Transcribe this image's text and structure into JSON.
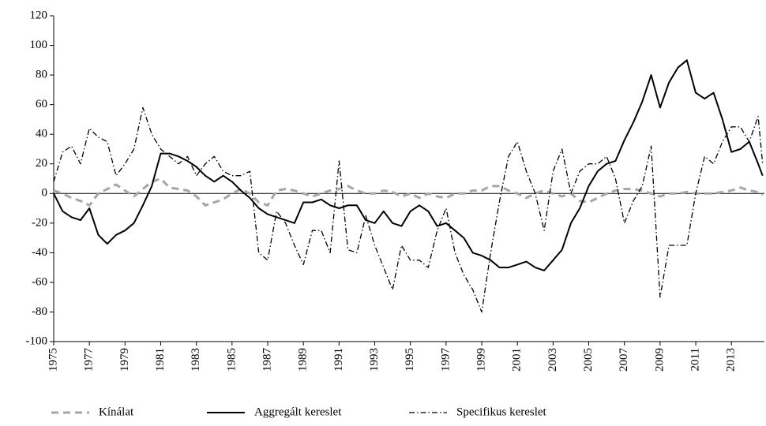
{
  "chart_data": {
    "type": "line",
    "x": [
      1975,
      1975.5,
      1976,
      1976.5,
      1977,
      1977.5,
      1978,
      1978.5,
      1979,
      1979.5,
      1980,
      1980.5,
      1981,
      1981.5,
      1982,
      1982.5,
      1983,
      1983.5,
      1984,
      1984.5,
      1985,
      1985.5,
      1986,
      1986.5,
      1987,
      1987.5,
      1988,
      1988.5,
      1989,
      1989.5,
      1990,
      1990.5,
      1991,
      1991.5,
      1992,
      1992.5,
      1993,
      1993.5,
      1994,
      1994.5,
      1995,
      1995.5,
      1996,
      1996.5,
      1997,
      1997.5,
      1998,
      1998.5,
      1999,
      1999.5,
      2000,
      2000.5,
      2001,
      2001.5,
      2002,
      2002.5,
      2003,
      2003.5,
      2004,
      2004.5,
      2005,
      2005.5,
      2006,
      2006.5,
      2007,
      2007.5,
      2008,
      2008.5,
      2009,
      2009.5,
      2010,
      2010.5,
      2011,
      2011.5,
      2012,
      2012.5,
      2013,
      2013.5,
      2014,
      2014.5,
      2014.75
    ],
    "series": [
      {
        "name": "Kínálat",
        "color": "#a6a6a6",
        "dash": "dashed",
        "width": 3,
        "values": [
          2,
          0,
          -3,
          -5,
          -8,
          0,
          3,
          6,
          2,
          -2,
          3,
          8,
          10,
          4,
          3,
          2,
          -2,
          -8,
          -6,
          -4,
          0,
          3,
          0,
          -6,
          -8,
          2,
          3,
          2,
          0,
          -2,
          0,
          2,
          3,
          5,
          2,
          0,
          0,
          2,
          1,
          -2,
          0,
          -3,
          0,
          -2,
          -3,
          0,
          0,
          2,
          2,
          5,
          5,
          2,
          0,
          -3,
          0,
          2,
          0,
          -2,
          0,
          -5,
          -6,
          -3,
          0,
          2,
          3,
          3,
          2,
          0,
          -2,
          0,
          0,
          1,
          0,
          0,
          0,
          1,
          2,
          4,
          2,
          1,
          -1
        ]
      },
      {
        "name": "Aggregált kereslet",
        "color": "#000000",
        "dash": "solid",
        "width": 2,
        "values": [
          0,
          -12,
          -16,
          -18,
          -10,
          -28,
          -34,
          -28,
          -25,
          -20,
          -8,
          5,
          27,
          27,
          25,
          22,
          18,
          12,
          8,
          12,
          8,
          2,
          -3,
          -10,
          -14,
          -16,
          -18,
          -20,
          -6,
          -6,
          -4,
          -8,
          -10,
          -8,
          -8,
          -18,
          -20,
          -12,
          -20,
          -22,
          -12,
          -8,
          -12,
          -22,
          -20,
          -25,
          -30,
          -40,
          -42,
          -45,
          -50,
          -50,
          -48,
          -46,
          -50,
          -52,
          -45,
          -38,
          -20,
          -10,
          5,
          15,
          20,
          22,
          36,
          48,
          62,
          80,
          58,
          75,
          85,
          90,
          68,
          64,
          68,
          50,
          28,
          30,
          35,
          20,
          12
        ]
      },
      {
        "name": "Specifikus kereslet",
        "color": "#000000",
        "dash": "dashdot",
        "width": 1.3,
        "values": [
          8,
          28,
          32,
          20,
          44,
          38,
          35,
          12,
          20,
          30,
          58,
          40,
          30,
          25,
          20,
          25,
          12,
          20,
          25,
          15,
          12,
          12,
          15,
          -40,
          -45,
          -12,
          -20,
          -35,
          -48,
          -25,
          -25,
          -40,
          22,
          -38,
          -40,
          -15,
          -35,
          -50,
          -65,
          -35,
          -45,
          -45,
          -50,
          -25,
          -10,
          -40,
          -55,
          -65,
          -80,
          -40,
          -5,
          25,
          35,
          15,
          0,
          -25,
          15,
          30,
          0,
          15,
          20,
          20,
          25,
          10,
          -20,
          -5,
          5,
          32,
          -70,
          -35,
          -35,
          -35,
          0,
          25,
          20,
          35,
          45,
          45,
          35,
          52,
          20
        ]
      }
    ],
    "xlim": [
      1975,
      2014.85
    ],
    "xticks": [
      1975,
      1977,
      1979,
      1981,
      1983,
      1985,
      1987,
      1989,
      1991,
      1993,
      1995,
      1997,
      1999,
      2001,
      2003,
      2005,
      2007,
      2009,
      2011,
      2013
    ],
    "ylim": [
      -100,
      120
    ],
    "yticks": [
      -100,
      -80,
      -60,
      -40,
      -20,
      0,
      20,
      40,
      60,
      80,
      100,
      120
    ],
    "legend": "bottom"
  }
}
